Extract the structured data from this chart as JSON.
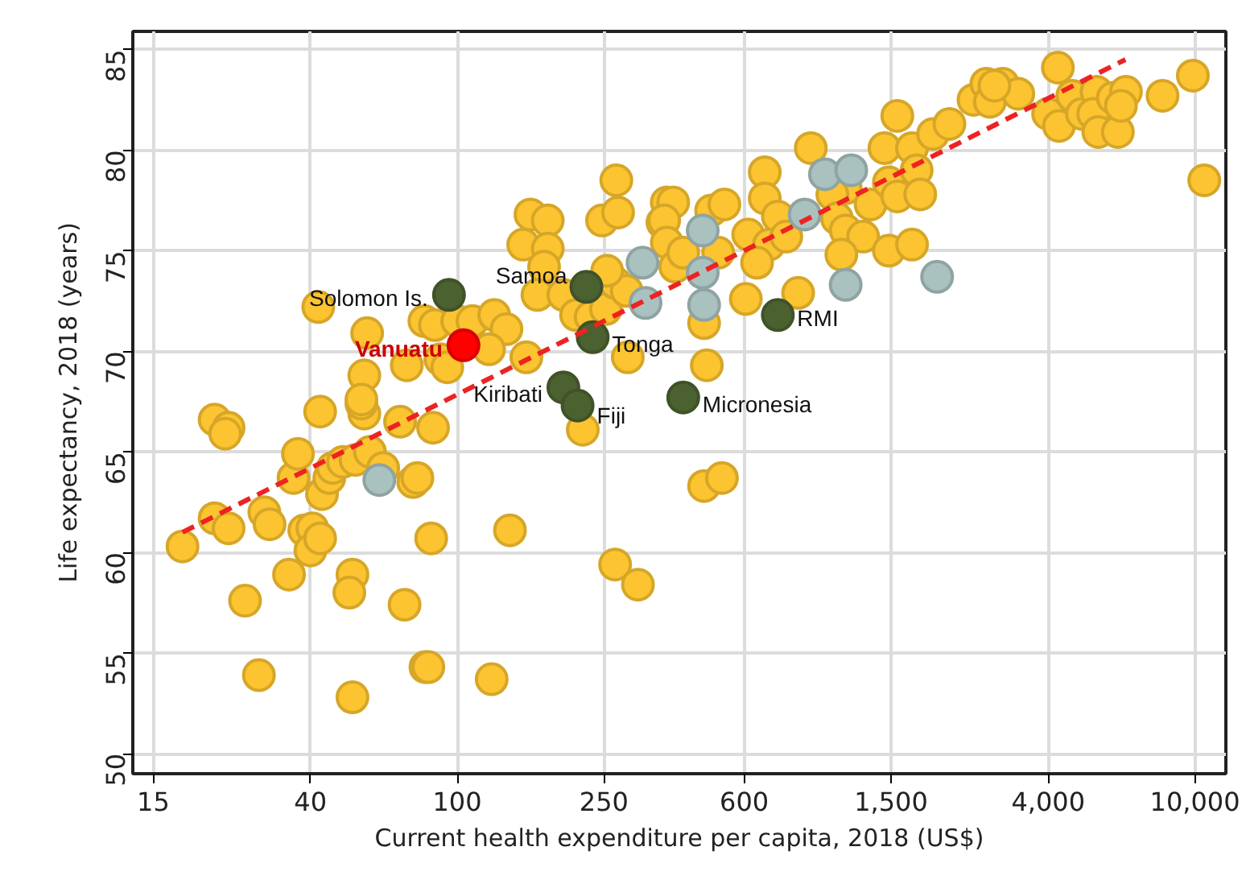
{
  "chart_data": {
    "type": "scatter",
    "xlabel": "Current health expenditure per capita, 2018 (US$)",
    "ylabel": "Life expectancy, 2018 (years)",
    "log": "x",
    "grid": true,
    "marker": "circle",
    "xlim": [
      13.2,
      12130
    ],
    "ylim": [
      49.0,
      85.9
    ],
    "xticks": [
      15,
      40,
      100,
      250,
      600,
      {
        "value": 1500,
        "label": "1,500"
      },
      {
        "value": 4000,
        "label": "4,000"
      },
      {
        "value": 10000,
        "label": "10,000"
      }
    ],
    "yticks": [
      50,
      55,
      60,
      65,
      70,
      75,
      80,
      85
    ],
    "series": [
      {
        "color": "#fcc430",
        "x": [
          18,
          22,
          24,
          22,
          24,
          23.5,
          26.6,
          29,
          30,
          31,
          35,
          36,
          37,
          38.5,
          40.5,
          40,
          42.5,
          43,
          45,
          42.5,
          46,
          49,
          53,
          58,
          63,
          52,
          51,
          52,
          56,
          55,
          70,
          72,
          76,
          78,
          82,
          83.5,
          86,
          85,
          124,
          139,
          219,
          268,
          309,
          467,
          522,
          42,
          57,
          81.5,
          87,
          100,
          110,
          126,
          136,
          122,
          90,
          94,
          73,
          56,
          55,
          154,
          151,
          158,
          176,
          176,
          172,
          165,
          194,
          210,
          230,
          253,
          268,
          288,
          247,
          273,
          270,
          290,
          255,
          360,
          370,
          385,
          364,
          370,
          390,
          410,
          467,
          475,
          488,
          530,
          510,
          606,
          615,
          682,
          682,
          740,
          700,
          650,
          780,
          840,
          909,
          1130,
          1040,
          1070,
          1130,
          1260,
          1100,
          1320,
          1440,
          1480,
          1560,
          1710,
          1760,
          1800,
          1560,
          1480,
          1710,
          1950,
          2160,
          2510,
          2720,
          2780,
          3010,
          3320,
          2860,
          4250,
          4000,
          4280,
          4650,
          4940,
          5410,
          5300,
          5470,
          5990,
          6180,
          6500,
          6300,
          8170,
          9870,
          10600
        ],
        "values": [
          60.3,
          61.7,
          61.2,
          66.6,
          66.2,
          65.9,
          57.6,
          53.9,
          62.0,
          61.4,
          58.9,
          63.7,
          64.9,
          61.1,
          61.2,
          60.1,
          60.7,
          62.9,
          63.7,
          67.0,
          64.2,
          64.5,
          64.6,
          65.0,
          64.2,
          58.9,
          58.0,
          52.8,
          66.9,
          67.4,
          66.5,
          57.4,
          63.5,
          63.7,
          54.3,
          54.3,
          66.2,
          60.7,
          53.7,
          61.1,
          66.1,
          59.4,
          58.4,
          63.3,
          63.7,
          72.2,
          70.9,
          71.5,
          71.3,
          71.5,
          71.5,
          71.8,
          71.1,
          70.1,
          69.6,
          69.2,
          69.3,
          68.8,
          67.6,
          69.7,
          75.3,
          76.8,
          76.5,
          75.1,
          74.2,
          72.8,
          72.8,
          71.8,
          71.7,
          72.1,
          73.4,
          73.0,
          76.5,
          76.9,
          78.5,
          69.7,
          74.0,
          76.4,
          77.4,
          77.4,
          76.5,
          75.4,
          74.2,
          74.9,
          71.4,
          69.3,
          77.0,
          77.3,
          74.9,
          72.6,
          75.8,
          78.9,
          77.6,
          76.7,
          75.3,
          74.4,
          75.7,
          72.9,
          80.1,
          78.1,
          77.8,
          76.6,
          76.0,
          75.7,
          74.8,
          77.3,
          80.1,
          78.4,
          77.7,
          80.1,
          79.0,
          77.8,
          81.7,
          75.0,
          75.3,
          80.8,
          81.3,
          82.5,
          83.3,
          82.4,
          83.3,
          82.8,
          83.2,
          84.1,
          81.8,
          81.2,
          82.7,
          81.8,
          82.9,
          81.8,
          80.9,
          82.6,
          80.9,
          82.9,
          82.2,
          82.7,
          83.7,
          78.5
        ]
      },
      {
        "color": "#a9c1bf",
        "x": [
          61.5,
          318,
          324,
          463,
          463,
          467,
          875,
          993,
          1170,
          1130,
          2000
        ],
        "values": [
          63.6,
          74.4,
          72.4,
          76.0,
          73.9,
          72.3,
          76.8,
          78.8,
          79.0,
          73.3,
          73.7
        ]
      },
      {
        "color": "#4b6130",
        "x": [
          95,
          224,
          233,
          194,
          212,
          410,
          740
        ],
        "values": [
          72.8,
          73.2,
          70.7,
          68.2,
          67.3,
          67.7,
          71.8
        ]
      },
      {
        "color": "#ff0000",
        "x": [
          104
        ],
        "values": [
          70.3
        ]
      },
      {
        "type": "line",
        "color": "#ee2222",
        "line_style": "dashed",
        "marker": "none",
        "x": [
          18,
          6480
        ],
        "values": [
          61.0,
          84.5
        ]
      }
    ],
    "annotations": [
      {
        "text": "Solomon Is.",
        "x": 95,
        "y": 72.8
      },
      {
        "text": "Samoa",
        "x": 224,
        "y": 73.2
      },
      {
        "text": "Vanuatu",
        "x": 104,
        "y": 70.3
      },
      {
        "text": "Tonga",
        "x": 233,
        "y": 70.7
      },
      {
        "text": "Kiribati",
        "x": 194,
        "y": 68.2
      },
      {
        "text": "Fiji",
        "x": 212,
        "y": 67.3
      },
      {
        "text": "Micronesia",
        "x": 410,
        "y": 67.7
      },
      {
        "text": "RMI",
        "x": 740,
        "y": 71.8
      }
    ]
  }
}
